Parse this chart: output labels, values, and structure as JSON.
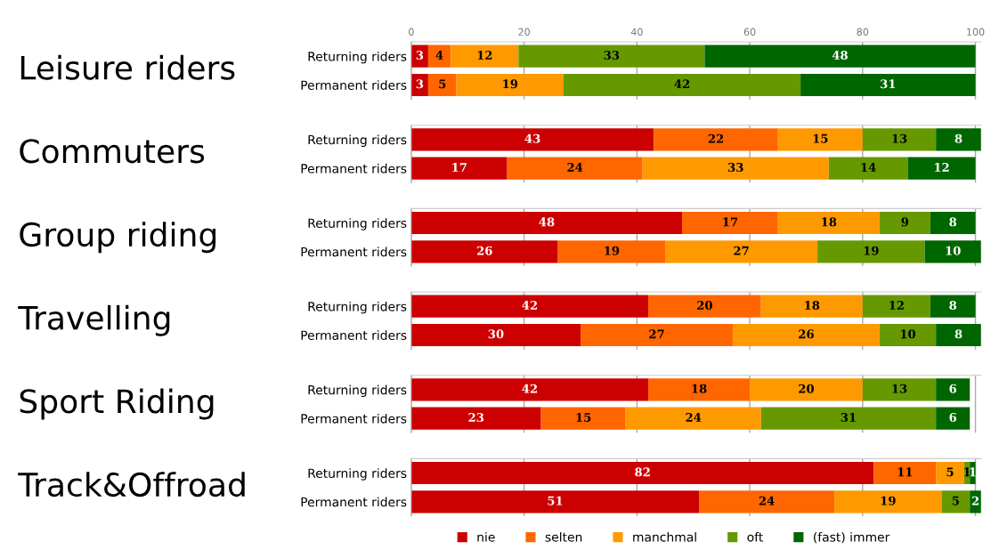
{
  "chart_data": [
    {
      "type": "bar",
      "orientation": "horizontal",
      "stacked": true,
      "title": "Leisure riders",
      "categories": [
        "Returning riders",
        "Permanent riders"
      ],
      "xlim": [
        0,
        101
      ],
      "xticks": [
        0,
        20,
        40,
        60,
        80,
        100
      ],
      "grid": "x",
      "data_labels": true,
      "legend": "bottom",
      "series": [
        {
          "name": "nie",
          "color": "#cc0000",
          "values": [
            3,
            3
          ]
        },
        {
          "name": "selten",
          "color": "#ff6600",
          "values": [
            4,
            5
          ]
        },
        {
          "name": "manchmal",
          "color": "#ff9900",
          "values": [
            12,
            19
          ]
        },
        {
          "name": "oft",
          "color": "#669900",
          "values": [
            33,
            42
          ]
        },
        {
          "name": "(fast) immer",
          "color": "#006600",
          "values": [
            48,
            31
          ]
        }
      ]
    },
    {
      "type": "bar",
      "orientation": "horizontal",
      "stacked": true,
      "title": "Commuters",
      "categories": [
        "Returning riders",
        "Permanent riders"
      ],
      "xlim": [
        0,
        101
      ],
      "xticks": [
        0,
        20,
        40,
        60,
        80,
        100
      ],
      "tick_labels": "y",
      "grid": "x",
      "data_labels": true,
      "series": [
        {
          "color": "#cc0000",
          "values": [
            43,
            17
          ]
        },
        {
          "color": "#ff6600",
          "values": [
            22,
            24
          ]
        },
        {
          "color": "#ff9900",
          "values": [
            15,
            33
          ]
        },
        {
          "color": "#669900",
          "values": [
            13,
            14
          ]
        },
        {
          "color": "#006600",
          "values": [
            8,
            12
          ]
        }
      ]
    },
    {
      "type": "bar",
      "orientation": "horizontal",
      "stacked": true,
      "title": "Group riding",
      "categories": [
        "Returning riders",
        "Permanent riders"
      ],
      "xlim": [
        0,
        101
      ],
      "xticks": [
        0,
        20,
        40,
        60,
        80,
        100
      ],
      "tick_labels": "y",
      "grid": "x",
      "data_labels": true,
      "series": [
        {
          "color": "#cc0000",
          "values": [
            48,
            26
          ]
        },
        {
          "color": "#ff6600",
          "values": [
            17,
            19
          ]
        },
        {
          "color": "#ff9900",
          "values": [
            18,
            27
          ]
        },
        {
          "color": "#669900",
          "values": [
            9,
            19
          ]
        },
        {
          "color": "#006600",
          "values": [
            8,
            10
          ]
        }
      ]
    },
    {
      "type": "bar",
      "orientation": "horizontal",
      "stacked": true,
      "title": "Travelling",
      "categories": [
        "Returning riders",
        "Permanent riders"
      ],
      "xlim": [
        0,
        101
      ],
      "xticks": [
        0,
        20,
        40,
        60,
        80,
        100
      ],
      "tick_labels": "y",
      "grid": "x",
      "data_labels": true,
      "series": [
        {
          "color": "#cc0000",
          "values": [
            42,
            30
          ]
        },
        {
          "color": "#ff6600",
          "values": [
            20,
            27
          ]
        },
        {
          "color": "#ff9900",
          "values": [
            18,
            26
          ]
        },
        {
          "color": "#669900",
          "values": [
            12,
            10
          ]
        },
        {
          "color": "#006600",
          "values": [
            8,
            8
          ]
        }
      ]
    },
    {
      "type": "bar",
      "orientation": "horizontal",
      "stacked": true,
      "title": "Sport Riding",
      "categories": [
        "Returning riders",
        "Permanent riders"
      ],
      "xlim": [
        0,
        101
      ],
      "xticks": [
        0,
        20,
        40,
        60,
        80,
        100
      ],
      "tick_labels": "y",
      "grid": "x",
      "data_labels": true,
      "series": [
        {
          "color": "#cc0000",
          "values": [
            42,
            23
          ]
        },
        {
          "color": "#ff6600",
          "values": [
            18,
            15
          ]
        },
        {
          "color": "#ff9900",
          "values": [
            20,
            24
          ]
        },
        {
          "color": "#669900",
          "values": [
            13,
            31
          ]
        },
        {
          "color": "#006600",
          "values": [
            6,
            6
          ]
        }
      ]
    },
    {
      "type": "bar",
      "orientation": "horizontal",
      "stacked": true,
      "title": "Track&Offroad",
      "categories": [
        "Returning riders",
        "Permanent riders"
      ],
      "xlim": [
        0,
        101
      ],
      "xticks": [
        0,
        20,
        40,
        60,
        80,
        100
      ],
      "tick_labels": "y",
      "grid": "x",
      "data_labels": true,
      "series": [
        {
          "color": "#cc0000",
          "values": [
            82,
            51
          ]
        },
        {
          "color": "#ff6600",
          "values": [
            11,
            24
          ]
        },
        {
          "color": "#ff9900",
          "values": [
            5,
            19
          ]
        },
        {
          "color": "#669900",
          "values": [
            1,
            5
          ]
        },
        {
          "color": "#006600",
          "values": [
            1,
            2
          ]
        }
      ]
    }
  ]
}
